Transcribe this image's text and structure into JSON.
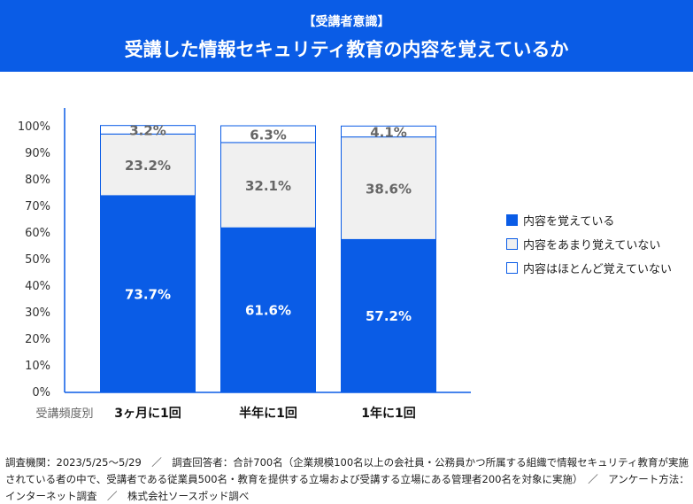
{
  "header": {
    "subtitle": "【受講者意識】",
    "title": "受講した情報セキュリティ教育の内容を覚えているか"
  },
  "chart_data": {
    "type": "bar",
    "stacked": true,
    "percent": true,
    "categories": [
      "3ヶ月に1回",
      "半年に1回",
      "1年に1回"
    ],
    "xlabel": "受講頻度別",
    "ylim": [
      0,
      100
    ],
    "yticks": [
      "0%",
      "10%",
      "20%",
      "30%",
      "40%",
      "50%",
      "60%",
      "70%",
      "80%",
      "90%",
      "100%"
    ],
    "legend_position": "right",
    "series": [
      {
        "name": "内容を覚えている",
        "values": [
          73.7,
          61.6,
          57.2
        ],
        "labels": [
          "73.7%",
          "61.6%",
          "57.2%"
        ],
        "color": "#0a5ce6"
      },
      {
        "name": "内容をあまり覚えていない",
        "values": [
          23.2,
          32.1,
          38.6
        ],
        "labels": [
          "23.2%",
          "32.1%",
          "38.6%"
        ],
        "color": "#f0f0f0"
      },
      {
        "name": "内容はほとんど覚えていない",
        "values": [
          3.2,
          6.3,
          4.1
        ],
        "labels": [
          "3.2%",
          "6.3%",
          "4.1%"
        ],
        "color": "#ffffff"
      }
    ]
  },
  "footer": {
    "note": "調査機関：2023/5/25〜5/29　／　調査回答者：合計700名（企業規模100名以上の会社員・公務員かつ所属する組織で情報セキュリティ教育が実施されている者の中で、受講者である従業員500名・教育を提供する立場および受講する立場にある管理者200名を対象に実施）　／　アンケート方法：インターネット調査　／　株式会社ソースポッド調べ"
  }
}
